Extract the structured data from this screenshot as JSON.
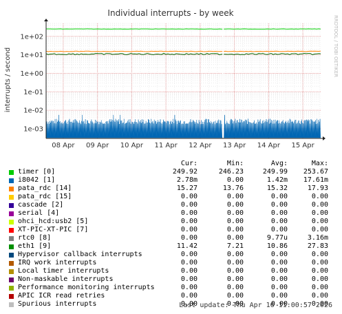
{
  "chart_data": {
    "type": "line",
    "title": "Individual interrupts - by week",
    "ylabel": "interrupts / second",
    "watermark": "RRDTOOL / TOBI OETIKER",
    "y_scale": "log",
    "ylim": [
      0.0003,
      500
    ],
    "yticks": [
      {
        "v": 100,
        "label": "1e+02"
      },
      {
        "v": 10,
        "label": "1e+01"
      },
      {
        "v": 1,
        "label": "1e+00"
      },
      {
        "v": 0.1,
        "label": "1e-01"
      },
      {
        "v": 0.01,
        "label": "1e-02"
      },
      {
        "v": 0.001,
        "label": "1e-03"
      }
    ],
    "xticks": [
      "08 Apr",
      "09 Apr",
      "10 Apr",
      "11 Apr",
      "12 Apr",
      "13 Apr",
      "14 Apr",
      "15 Apr"
    ],
    "x_range": [
      "07 Apr 12:00",
      "16 Apr 11:00"
    ],
    "series": [
      {
        "name": "timer [0]",
        "color": "#00cc00",
        "values": [
          249.9,
          249.9
        ]
      },
      {
        "name": "pata_rdc [14]",
        "color": "#ff8000",
        "values": [
          15.3,
          15.3
        ]
      },
      {
        "name": "eth1 [9]",
        "color": "#006600",
        "values": [
          11,
          11
        ]
      },
      {
        "name": "i8042 [1]",
        "color": "#0066b3",
        "values_range": [
          0.0003,
          0.0035
        ]
      }
    ],
    "gap_x": "12 Apr 16:00"
  },
  "legend": {
    "headers": [
      "Cur:",
      "Min:",
      "Avg:",
      "Max:"
    ],
    "rows": [
      {
        "name": "timer [0]",
        "color": "#00cc00",
        "cur": "249.92",
        "min": "246.23",
        "avg": "249.99",
        "max": "253.67"
      },
      {
        "name": "i8042 [1]",
        "color": "#0066b3",
        "cur": "2.78m",
        "min": "0.00",
        "avg": "1.42m",
        "max": "17.61m"
      },
      {
        "name": "pata_rdc [14]",
        "color": "#ff8000",
        "cur": "15.27",
        "min": "13.76",
        "avg": "15.32",
        "max": "17.93"
      },
      {
        "name": "pata_rdc [15]",
        "color": "#ffcc00",
        "cur": "0.00",
        "min": "0.00",
        "avg": "0.00",
        "max": "0.00"
      },
      {
        "name": "cascade [2]",
        "color": "#330099",
        "cur": "0.00",
        "min": "0.00",
        "avg": "0.00",
        "max": "0.00"
      },
      {
        "name": "serial [4]",
        "color": "#990099",
        "cur": "0.00",
        "min": "0.00",
        "avg": "0.00",
        "max": "0.00"
      },
      {
        "name": "ohci_hcd:usb2 [5]",
        "color": "#ccff00",
        "cur": "0.00",
        "min": "0.00",
        "avg": "0.00",
        "max": "0.00"
      },
      {
        "name": "XT-PIC-XT-PIC [7]",
        "color": "#ff0000",
        "cur": "0.00",
        "min": "0.00",
        "avg": "0.00",
        "max": "0.00"
      },
      {
        "name": "rtc0 [8]",
        "color": "#808080",
        "cur": "0.00",
        "min": "0.00",
        "avg": "9.77u",
        "max": "3.16m"
      },
      {
        "name": "eth1 [9]",
        "color": "#008f00",
        "cur": "11.42",
        "min": "7.21",
        "avg": "10.86",
        "max": "27.83"
      },
      {
        "name": "Hypervisor callback interrupts",
        "color": "#00487d",
        "cur": "0.00",
        "min": "0.00",
        "avg": "0.00",
        "max": "0.00"
      },
      {
        "name": "IRQ work interrupts",
        "color": "#b35a00",
        "cur": "0.00",
        "min": "0.00",
        "avg": "0.00",
        "max": "0.00"
      },
      {
        "name": "Local timer interrupts",
        "color": "#b38f00",
        "cur": "0.00",
        "min": "0.00",
        "avg": "0.00",
        "max": "0.00"
      },
      {
        "name": "Non-maskable interrupts",
        "color": "#6b006b",
        "cur": "0.00",
        "min": "0.00",
        "avg": "0.00",
        "max": "0.00"
      },
      {
        "name": "Performance monitoring interrupts",
        "color": "#8fb300",
        "cur": "0.00",
        "min": "0.00",
        "avg": "0.00",
        "max": "0.00"
      },
      {
        "name": "APIC ICR read retries",
        "color": "#b30000",
        "cur": "0.00",
        "min": "0.00",
        "avg": "0.00",
        "max": "0.00"
      },
      {
        "name": "Spurious interrupts",
        "color": "#bebebe",
        "cur": "0.00",
        "min": "0.00",
        "avg": "0.00",
        "max": "0.00"
      }
    ]
  },
  "footer": {
    "last_update": "Last update: Thu Apr 16 11:00:57 2026"
  }
}
